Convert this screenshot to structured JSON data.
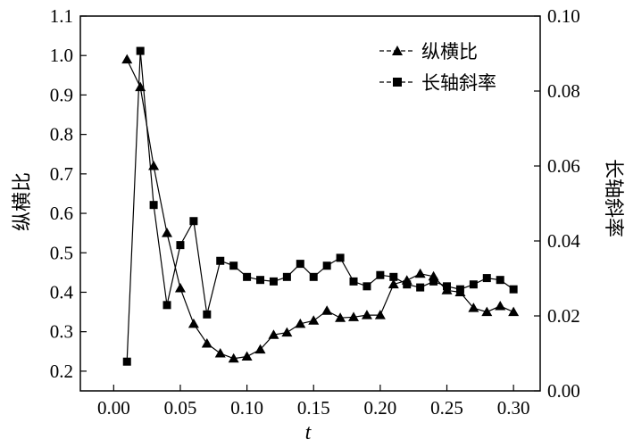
{
  "chart_data": {
    "type": "line",
    "xlabel": "t",
    "ylabel_left": "纵横比",
    "ylabel_right": "长轴斜率",
    "xlim": [
      -0.025,
      0.32
    ],
    "ylim_left": [
      0.15,
      1.1
    ],
    "ylim_right": [
      0.0,
      0.1
    ],
    "x_ticks": [
      "0.00",
      "0.05",
      "0.10",
      "0.15",
      "0.20",
      "0.25",
      "0.30"
    ],
    "y_left_ticks": [
      "0.2",
      "0.3",
      "0.4",
      "0.5",
      "0.6",
      "0.7",
      "0.8",
      "0.9",
      "1.0",
      "1.1"
    ],
    "y_right_ticks": [
      "0.00",
      "0.02",
      "0.04",
      "0.06",
      "0.08",
      "0.10"
    ],
    "grid": false,
    "legend_position": "top-right",
    "series": [
      {
        "name": "纵横比",
        "axis": "left",
        "marker": "triangle",
        "x": [
          0.01,
          0.02,
          0.03,
          0.04,
          0.05,
          0.06,
          0.07,
          0.08,
          0.09,
          0.1,
          0.11,
          0.12,
          0.13,
          0.14,
          0.15,
          0.16,
          0.17,
          0.18,
          0.19,
          0.2,
          0.21,
          0.22,
          0.23,
          0.24,
          0.25,
          0.26,
          0.27,
          0.28,
          0.29,
          0.3
        ],
        "values": [
          0.99,
          0.92,
          0.72,
          0.55,
          0.41,
          0.32,
          0.27,
          0.245,
          0.232,
          0.237,
          0.255,
          0.292,
          0.298,
          0.32,
          0.328,
          0.353,
          0.335,
          0.337,
          0.342,
          0.342,
          0.42,
          0.43,
          0.447,
          0.44,
          0.405,
          0.4,
          0.36,
          0.35,
          0.365,
          0.35
        ]
      },
      {
        "name": "长轴斜率",
        "axis": "right",
        "marker": "square",
        "x": [
          0.01,
          0.02,
          0.03,
          0.04,
          0.05,
          0.06,
          0.07,
          0.08,
          0.09,
          0.1,
          0.11,
          0.12,
          0.13,
          0.14,
          0.15,
          0.16,
          0.17,
          0.18,
          0.19,
          0.2,
          0.21,
          0.22,
          0.23,
          0.24,
          0.25,
          0.26,
          0.27,
          0.28,
          0.29,
          0.3
        ],
        "values": [
          0.0078,
          0.0907,
          0.0496,
          0.0229,
          0.0389,
          0.0453,
          0.0204,
          0.0347,
          0.0334,
          0.0304,
          0.0296,
          0.0292,
          0.0304,
          0.0339,
          0.0304,
          0.0334,
          0.0355,
          0.0292,
          0.0279,
          0.0309,
          0.0304,
          0.0284,
          0.0276,
          0.0292,
          0.0279,
          0.0271,
          0.0284,
          0.0301,
          0.0296,
          0.0271
        ]
      }
    ]
  }
}
